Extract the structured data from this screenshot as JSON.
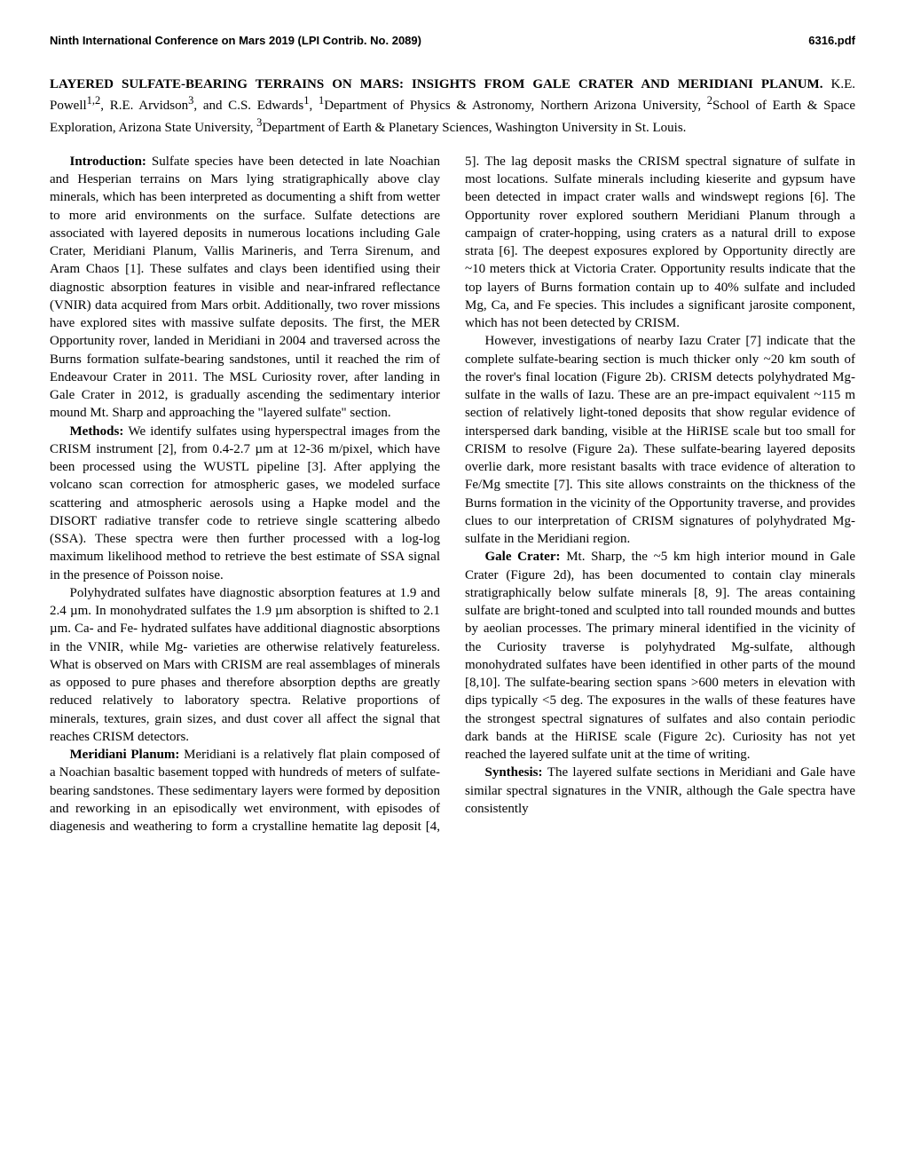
{
  "header": {
    "conference": "Ninth International Conference on Mars 2019 (LPI Contrib. No. 2089)",
    "docid": "6316.pdf"
  },
  "title": {
    "main": "LAYERED SULFATE-BEARING TERRAINS ON MARS: INSIGHTS FROM GALE CRATER AND MERIDIANI PLANUM.",
    "authors_html": " K.E. Powell<sup>1,2</sup>, R.E. Arvidson<sup>3</sup>, and C.S. Edwards<sup>1</sup>, <sup>1</sup>Department of Physics & Astronomy, Northern Arizona University, <sup>2</sup>School of Earth & Space Exploration, Arizona State University, <sup>3</sup>Department of Earth & Planetary Sciences, Washington University in St. Louis."
  },
  "sections": {
    "intro_head": "Introduction: ",
    "intro_body": "Sulfate species have been detected in late Noachian and Hesperian terrains on Mars lying stratigraphically above clay minerals, which has been interpreted as documenting a shift from wetter to more arid environments on the surface. Sulfate detections are associated with layered deposits in numerous locations including Gale Crater, Meridiani Planum, Vallis Marineris, and Terra Sirenum, and Aram Chaos [1]. These sulfates and clays been identified using their diagnostic absorption features in visible and near-infrared reflectance (VNIR) data acquired from Mars orbit. Additionally, two rover missions have explored sites with massive sulfate deposits. The first, the MER Opportunity rover, landed in Meridiani in 2004 and traversed across the Burns formation sulfate-bearing sandstones, until it reached the rim of Endeavour Crater in 2011. The MSL Curiosity rover, after landing in Gale Crater in 2012, is gradually ascending the sedimentary interior mound Mt. Sharp and approaching the \"layered sulfate\" section.",
    "methods_head": "Methods: ",
    "methods_body": "We identify sulfates using hyperspectral images from the CRISM instrument [2], from 0.4-2.7 µm at 12-36 m/pixel, which have been processed using the WUSTL pipeline [3]. After applying the volcano scan correction for atmospheric gases, we modeled surface scattering and atmospheric aerosols using a Hapke model and the DISORT radiative transfer code to retrieve single scattering albedo (SSA). These spectra were then further processed with a log-log maximum likelihood method to retrieve the best estimate of SSA signal in the presence of Poisson noise.",
    "methods_p2": "Polyhydrated sulfates have diagnostic absorption features at 1.9 and 2.4 µm. In monohydrated sulfates the 1.9 µm absorption is shifted to 2.1 µm. Ca- and Fe- hydrated sulfates have additional diagnostic absorptions in the VNIR, while Mg- varieties are otherwise relatively featureless. What is observed on Mars with CRISM are real assemblages of minerals as opposed to pure phases and therefore absorption depths are greatly reduced relatively to laboratory spectra. Relative proportions of minerals, textures, grain sizes, and dust cover all affect the signal that reaches CRISM detectors.",
    "meridiani_head": "Meridiani Planum: ",
    "meridiani_body": "Meridiani is a relatively flat plain composed of a Noachian basaltic basement topped with hundreds of meters of sulfate-bearing sandstones. These sedimentary layers were formed by deposition and reworking in an episodically wet environment, with episodes of diagenesis and weathering to form a crystalline hematite lag deposit [4, 5]. The lag deposit masks the CRISM spectral signature of sulfate in most locations. Sulfate minerals including kieserite and gypsum have been detected in impact crater walls and windswept regions [6]. The Opportunity rover explored southern Meridiani Planum through a campaign of crater-hopping, using craters as a natural drill to expose strata [6]. The deepest exposures explored by Opportunity directly are ~10 meters thick at Victoria Crater. Opportunity results indicate that the top layers of Burns formation contain up to 40% sulfate and included Mg, Ca, and Fe species. This includes a significant jarosite component, which has not been detected by CRISM.",
    "meridiani_p2": "However, investigations of nearby Iazu Crater [7] indicate that the complete sulfate-bearing section is much thicker only ~20 km south of the rover's final location (Figure 2b). CRISM detects polyhydrated Mg-sulfate in the walls of Iazu. These are an pre-impact equivalent ~115 m section of relatively light-toned deposits that show regular evidence of interspersed dark banding, visible at the HiRISE scale but too small for CRISM to resolve (Figure 2a). These sulfate-bearing layered deposits overlie dark, more resistant basalts with trace evidence of alteration to Fe/Mg smectite [7]. This site allows constraints on the thickness of the Burns formation in the vicinity of the Opportunity traverse, and provides clues to our interpretation of CRISM signatures of polyhydrated Mg-sulfate in the Meridiani region.",
    "gale_head": "Gale Crater: ",
    "gale_body": "Mt. Sharp, the ~5 km high interior mound in Gale Crater (Figure 2d), has been documented to contain clay minerals stratigraphically below sulfate minerals [8, 9]. The areas containing sulfate are bright-toned and sculpted into tall rounded mounds and buttes by aeolian processes. The primary mineral identified in the vicinity of the Curiosity traverse is polyhydrated Mg-sulfate, although monohydrated sulfates have been identified in other parts of the mound [8,10]. The sulfate-bearing section spans >600 meters in elevation with dips typically <5 deg. The exposures in the walls of these features have the strongest spectral signatures of sulfates and also contain periodic dark bands at the HiRISE scale (Figure 2c). Curiosity has not yet reached the layered sulfate unit at the time of writing.",
    "synthesis_head": "Synthesis: ",
    "synthesis_body": "The layered sulfate sections in Meridiani and Gale have similar spectral signatures in the VNIR, although the Gale spectra have consistently"
  }
}
